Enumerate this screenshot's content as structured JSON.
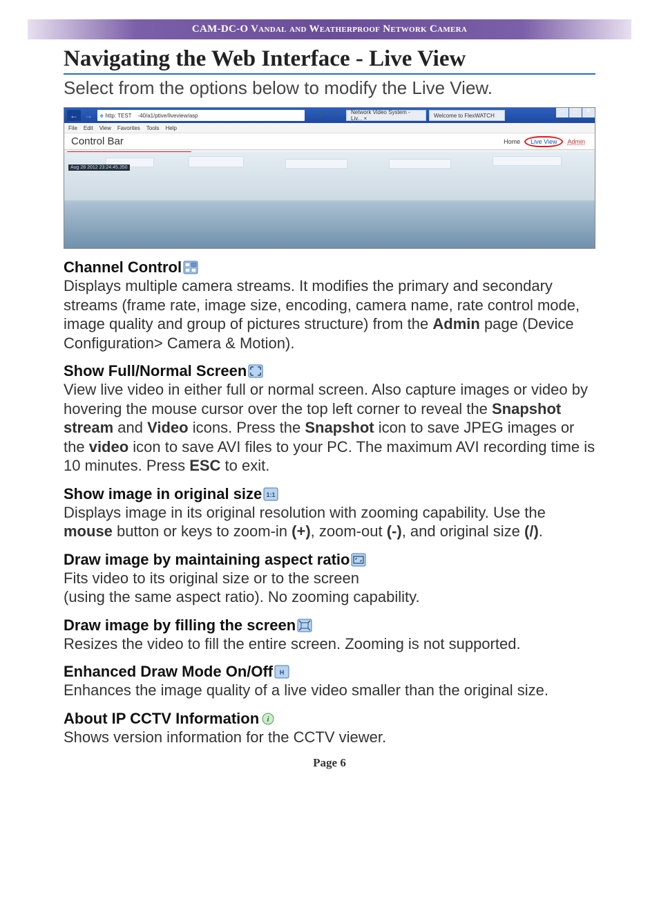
{
  "banner": {
    "text": "CAM-DC-O Vandal and Weatherproof Network Camera"
  },
  "page_title": "Navigating the Web Interface - Live View",
  "lead": "Select from the options below to modify the Live View.",
  "screenshot": {
    "url_prefix": "http: TEST",
    "url_rest": "-40/a1/ptive/liveview/asp",
    "search_ctrl": "ρ - c ×",
    "tab1": "Network Video System - Liv... ×",
    "tab2": "Welcome to FlexWATCH",
    "menu": [
      "File",
      "Edit",
      "View",
      "Favorites",
      "Tools",
      "Help"
    ],
    "control_bar_label": "Control Bar",
    "nav_home": "Home",
    "nav_liveview": "Live View",
    "nav_admin": "Admin",
    "timestamp": "Aug 28 2012 23:24:45.350",
    "toolbar_icons": [
      "channel-control",
      "full-normal",
      "original-size",
      "aspect-ratio",
      "fill-screen",
      "enhanced",
      "info"
    ]
  },
  "sections": [
    {
      "key": "channel",
      "title": "Channel Control",
      "icon": "channel-icon",
      "body_html": "Displays multiple camera streams. It modifies the primary and secondary streams (frame rate, image size, encoding, camera name, rate control mode, image quality and group of pictures structure) from the <b>Admin</b> page (Device Configuration> Camera & Motion)."
    },
    {
      "key": "fullnormal",
      "title": "Show Full/Normal Screen",
      "icon": "fullscreen-icon",
      "body_html": "View live video in either full or normal screen. Also capture images or video by hovering the mouse cursor over the top left corner to reveal the <b>Snapshot stream</b> and <b>Video</b> icons. Press the <b>Snapshot</b> icon to save JPEG images or the <b>video</b> icon to save AVI files to your PC. The maximum AVI recording time is 10 minutes. Press <b>ESC</b> to exit."
    },
    {
      "key": "original",
      "title": "Show image in original size",
      "icon": "original-icon",
      "body_html": "Displays image in its original resolution with zooming capability. Use the <b>mouse</b> button or keys to zoom-in <b>(+)</b>, zoom-out <b>(-)</b>, and original size <b>(/)</b>."
    },
    {
      "key": "aspect",
      "title": "Draw image by maintaining aspect ratio",
      "icon": "aspect-icon",
      "body_html": "Fits video to its original size or to the screen<br>(using the same aspect ratio). No zooming capability."
    },
    {
      "key": "fill",
      "title": "Draw image by filling the screen",
      "icon": "fill-icon",
      "body_html": "Resizes the video to fill the entire screen. Zooming is not supported."
    },
    {
      "key": "enhanced",
      "title": "Enhanced Draw Mode On/Off",
      "icon": "enhanced-icon",
      "body_html": "Enhances the image quality of a live video smaller than the original size."
    },
    {
      "key": "about",
      "title": "About IP CCTV Information",
      "icon": "info-icon",
      "body_html": "Shows version information for the CCTV viewer."
    }
  ],
  "page_number": "Page 6",
  "colors": {
    "banner_purple": "#6a4d99",
    "title_rule": "#2a6dbf",
    "red_highlight": "#e51818",
    "toolbar_btn_grad_top": "#7fa8d8",
    "toolbar_btn_grad_bottom": "#5a86c0",
    "info_btn": "#5fa85f"
  },
  "icons_svg": {
    "channel-icon": "<svg viewBox='0 0 22 20'><rect x='1' y='1' width='20' height='18' rx='2' fill='#b8d4f0' stroke='#4a78b0'/><rect x='3' y='3' width='7' height='6' fill='#f4f9ff' stroke='#6b98c8'/><rect x='12' y='3' width='7' height='6' fill='#6b98c8' stroke='#4a78b0'/><rect x='3' y='11' width='7' height='6' fill='#f4f9ff' stroke='#6b98c8'/><rect x='12' y='11' width='7' height='6' fill='#f4f9ff' stroke='#6b98c8'/></svg>",
    "fullscreen-icon": "<svg viewBox='0 0 22 20'><rect x='1' y='1' width='20' height='18' rx='2' fill='#b8d4f0' stroke='#4a78b0'/><path d='M4 4 L8 4 M4 4 L4 8 M18 4 L14 4 M18 4 L18 8 M4 16 L8 16 M4 16 L4 12 M18 16 L14 16 M18 16 L18 12' stroke='#2a4f7a' stroke-width='1.6' fill='none'/></svg>",
    "original-icon": "<svg viewBox='0 0 22 20'><rect x='1' y='1' width='20' height='18' rx='2' fill='#b8d4f0' stroke='#4a78b0'/><text x='11' y='14' font-size='9' font-family='Arial' font-weight='bold' fill='#2a4f7a' text-anchor='middle'>1:1</text></svg>",
    "aspect-icon": "<svg viewBox='0 0 22 20'><rect x='1' y='1' width='20' height='18' rx='2' fill='#b8d4f0' stroke='#4a78b0'/><rect x='4' y='5' width='14' height='10' fill='none' stroke='#2a4f7a' stroke-width='1.3'/><path d='M7 8 h2 M7 8 v2 M15 12 h-2 M15 12 v-2' stroke='#2a4f7a' stroke-width='1.2'/></svg>",
    "fill-icon": "<svg viewBox='0 0 22 20'><rect x='1' y='1' width='20' height='18' rx='2' fill='#b8d4f0' stroke='#4a78b0'/><path d='M6 6 L3 3 M16 6 L19 3 M6 14 L3 17 M16 14 L19 17' stroke='#2a4f7a' stroke-width='1.3'/><rect x='6' y='6' width='10' height='8' fill='none' stroke='#2a4f7a'/></svg>",
    "enhanced-icon": "<svg viewBox='0 0 22 20'><rect x='1' y='1' width='20' height='18' rx='2' fill='#b8d4f0' stroke='#4a78b0'/><text x='11' y='14' font-size='9' font-family='Arial' font-weight='bold' fill='#2a4f7a' text-anchor='middle'>H</text></svg>",
    "info-icon": "<svg viewBox='0 0 22 20'><circle cx='11' cy='10' r='8' fill='#cfeccf' stroke='#4ea04e'/><text x='11' y='14' font-size='11' font-family='Georgia' font-style='italic' font-weight='bold' fill='#1e6e1e' text-anchor='middle'>i</text></svg>"
  }
}
